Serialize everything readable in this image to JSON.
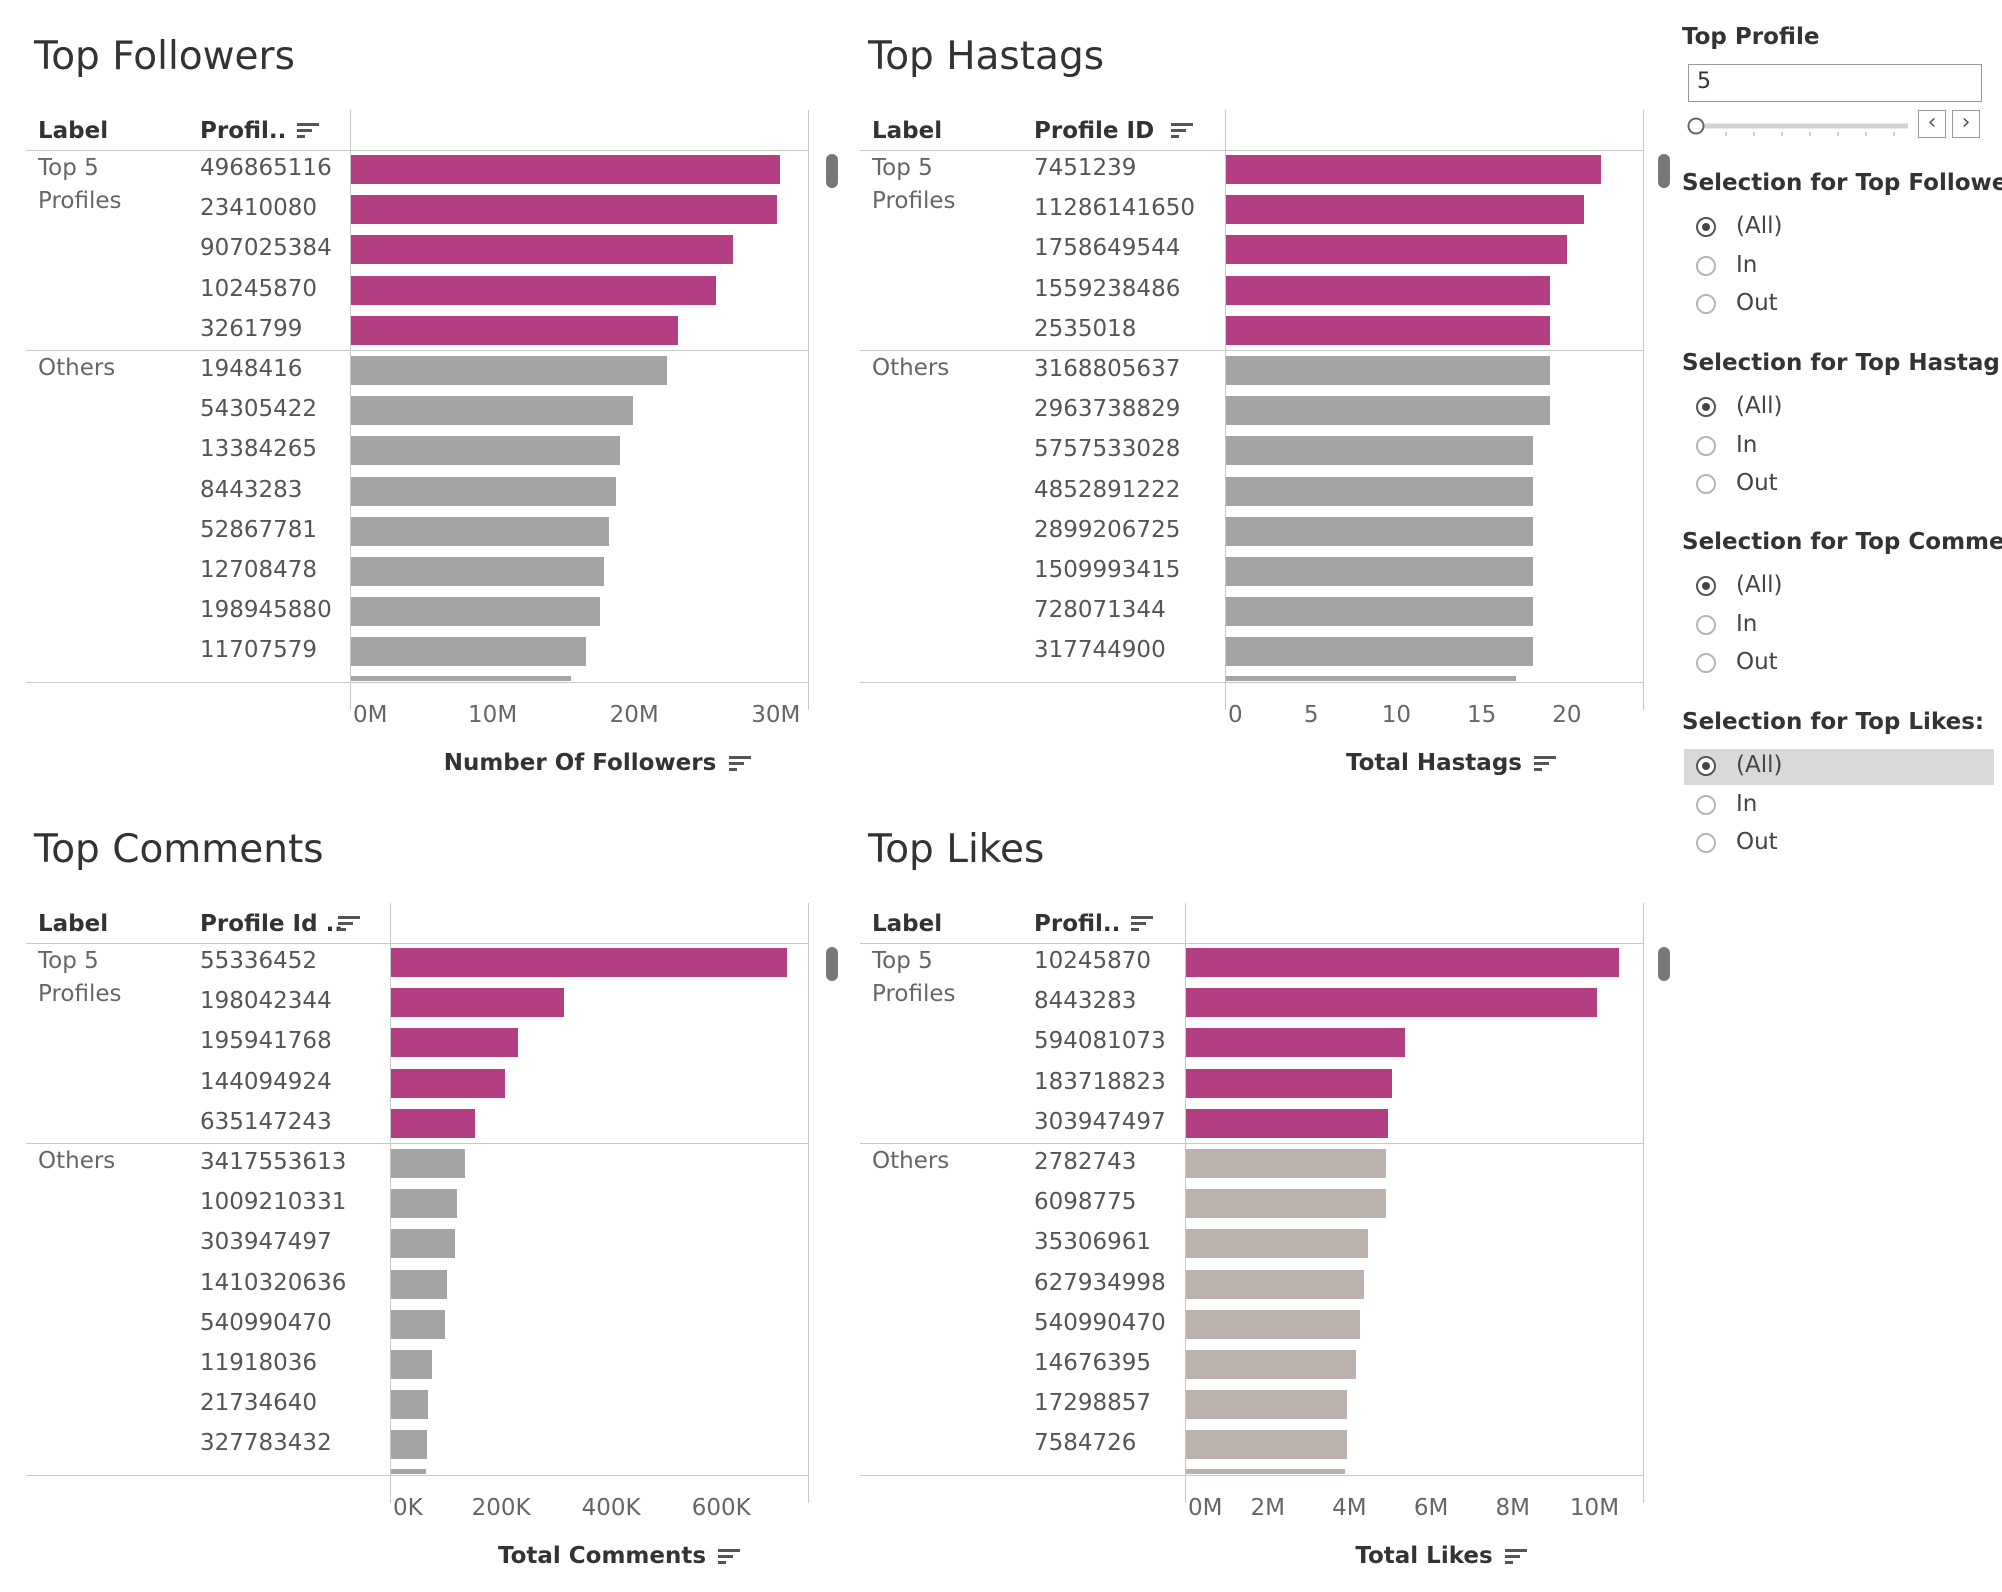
{
  "colors": {
    "highlight": "#b43e82",
    "others_grey": "#a4a4a4",
    "others_taupe": "#bbb1ad"
  },
  "chart_data": [
    {
      "type": "bar",
      "title": "Top Followers",
      "col_label": "Label",
      "col_profile": "Profil..",
      "xlabel": "Number Of Followers",
      "groups": [
        "Top 5\nProfiles",
        "Others"
      ],
      "xlim": [
        0,
        31000000
      ],
      "ticks": [
        {
          "v": 0,
          "t": "0M"
        },
        {
          "v": 10000000,
          "t": "10M"
        },
        {
          "v": 20000000,
          "t": "20M"
        },
        {
          "v": 30000000,
          "t": "30M"
        }
      ],
      "top5": [
        {
          "id": "496865116",
          "value": 30300000
        },
        {
          "id": "23410080",
          "value": 30100000
        },
        {
          "id": "907025384",
          "value": 27000000
        },
        {
          "id": "10245870",
          "value": 25800000
        },
        {
          "id": "3261799",
          "value": 23100000
        }
      ],
      "others": [
        {
          "id": "1948416",
          "value": 22300000
        },
        {
          "id": "54305422",
          "value": 19900000
        },
        {
          "id": "13384265",
          "value": 19000000
        },
        {
          "id": "8443283",
          "value": 18700000
        },
        {
          "id": "52867781",
          "value": 18200000
        },
        {
          "id": "12708478",
          "value": 17900000
        },
        {
          "id": "198945880",
          "value": 17600000
        },
        {
          "id": "11707579",
          "value": 16600000
        }
      ],
      "cut_value": 15500000
    },
    {
      "type": "bar",
      "title": "Top Hastags",
      "col_label": "Label",
      "col_profile": "Profile ID",
      "xlabel": "Total Hastags",
      "groups": [
        "Top 5\nProfiles",
        "Others"
      ],
      "xlim": [
        0,
        23
      ],
      "ticks": [
        {
          "v": 0,
          "t": "0"
        },
        {
          "v": 5,
          "t": "5"
        },
        {
          "v": 10,
          "t": "10"
        },
        {
          "v": 15,
          "t": "15"
        },
        {
          "v": 20,
          "t": "20"
        }
      ],
      "top5": [
        {
          "id": "7451239",
          "value": 22
        },
        {
          "id": "11286141650",
          "value": 21
        },
        {
          "id": "1758649544",
          "value": 20
        },
        {
          "id": "1559238486",
          "value": 19
        },
        {
          "id": "2535018",
          "value": 19
        }
      ],
      "others": [
        {
          "id": "3168805637",
          "value": 19
        },
        {
          "id": "2963738829",
          "value": 19
        },
        {
          "id": "5757533028",
          "value": 18
        },
        {
          "id": "4852891222",
          "value": 18
        },
        {
          "id": "2899206725",
          "value": 18
        },
        {
          "id": "1509993415",
          "value": 18
        },
        {
          "id": "728071344",
          "value": 18
        },
        {
          "id": "317744900",
          "value": 18
        }
      ],
      "cut_value": 17
    },
    {
      "type": "bar",
      "title": "Top Comments",
      "col_label": "Label",
      "col_profile": "Profile Id ..",
      "xlabel": "Total Comments",
      "groups": [
        "Top 5\nProfiles",
        "Others"
      ],
      "xlim": [
        0,
        725000
      ],
      "ticks": [
        {
          "v": 0,
          "t": "0K"
        },
        {
          "v": 200000,
          "t": "200K"
        },
        {
          "v": 400000,
          "t": "400K"
        },
        {
          "v": 600000,
          "t": "600K"
        }
      ],
      "top5": [
        {
          "id": "55336452",
          "value": 720000
        },
        {
          "id": "198042344",
          "value": 315000
        },
        {
          "id": "195941768",
          "value": 230000
        },
        {
          "id": "144094924",
          "value": 208000
        },
        {
          "id": "635147243",
          "value": 152000
        }
      ],
      "others": [
        {
          "id": "3417553613",
          "value": 135000
        },
        {
          "id": "1009210331",
          "value": 120000
        },
        {
          "id": "303947497",
          "value": 116000
        },
        {
          "id": "1410320636",
          "value": 102000
        },
        {
          "id": "540990470",
          "value": 98000
        },
        {
          "id": "11918036",
          "value": 75000
        },
        {
          "id": "21734640",
          "value": 68000
        },
        {
          "id": "327783432",
          "value": 65000
        }
      ],
      "cut_value": 64000
    },
    {
      "type": "bar",
      "title": "Top Likes",
      "col_label": "Label",
      "col_profile": "Profil..",
      "xlabel": "Total Likes",
      "groups": [
        "Top 5\nProfiles",
        "Others"
      ],
      "xlim": [
        0,
        10600000
      ],
      "ticks": [
        {
          "v": 0,
          "t": "0M"
        },
        {
          "v": 2000000,
          "t": "2M"
        },
        {
          "v": 4000000,
          "t": "4M"
        },
        {
          "v": 6000000,
          "t": "6M"
        },
        {
          "v": 8000000,
          "t": "8M"
        },
        {
          "v": 10000000,
          "t": "10M"
        }
      ],
      "top5": [
        {
          "id": "10245870",
          "value": 10600000
        },
        {
          "id": "8443283",
          "value": 10050000
        },
        {
          "id": "594081073",
          "value": 5350000
        },
        {
          "id": "183718823",
          "value": 5050000
        },
        {
          "id": "303947497",
          "value": 4950000
        }
      ],
      "others": [
        {
          "id": "2782743",
          "value": 4900000
        },
        {
          "id": "6098775",
          "value": 4900000
        },
        {
          "id": "35306961",
          "value": 4450000
        },
        {
          "id": "627934998",
          "value": 4350000
        },
        {
          "id": "540990470",
          "value": 4250000
        },
        {
          "id": "14676395",
          "value": 4150000
        },
        {
          "id": "17298857",
          "value": 3950000
        },
        {
          "id": "7584726",
          "value": 3950000
        }
      ],
      "cut_value": 3900000
    }
  ],
  "sidebar": {
    "top_profile": {
      "title": "Top Profile",
      "value": "5",
      "slider_fraction": 0
    },
    "filters": [
      {
        "title": "Selection for Top Followe..",
        "options": [
          "(All)",
          "In",
          "Out"
        ],
        "selected": 0,
        "highlighted": false
      },
      {
        "title": "Selection for Top Hastag:",
        "options": [
          "(All)",
          "In",
          "Out"
        ],
        "selected": 0,
        "highlighted": false
      },
      {
        "title": "Selection for Top Comme..",
        "options": [
          "(All)",
          "In",
          "Out"
        ],
        "selected": 0,
        "highlighted": false
      },
      {
        "title": "Selection for Top Likes:",
        "options": [
          "(All)",
          "In",
          "Out"
        ],
        "selected": 0,
        "highlighted": true
      }
    ]
  }
}
